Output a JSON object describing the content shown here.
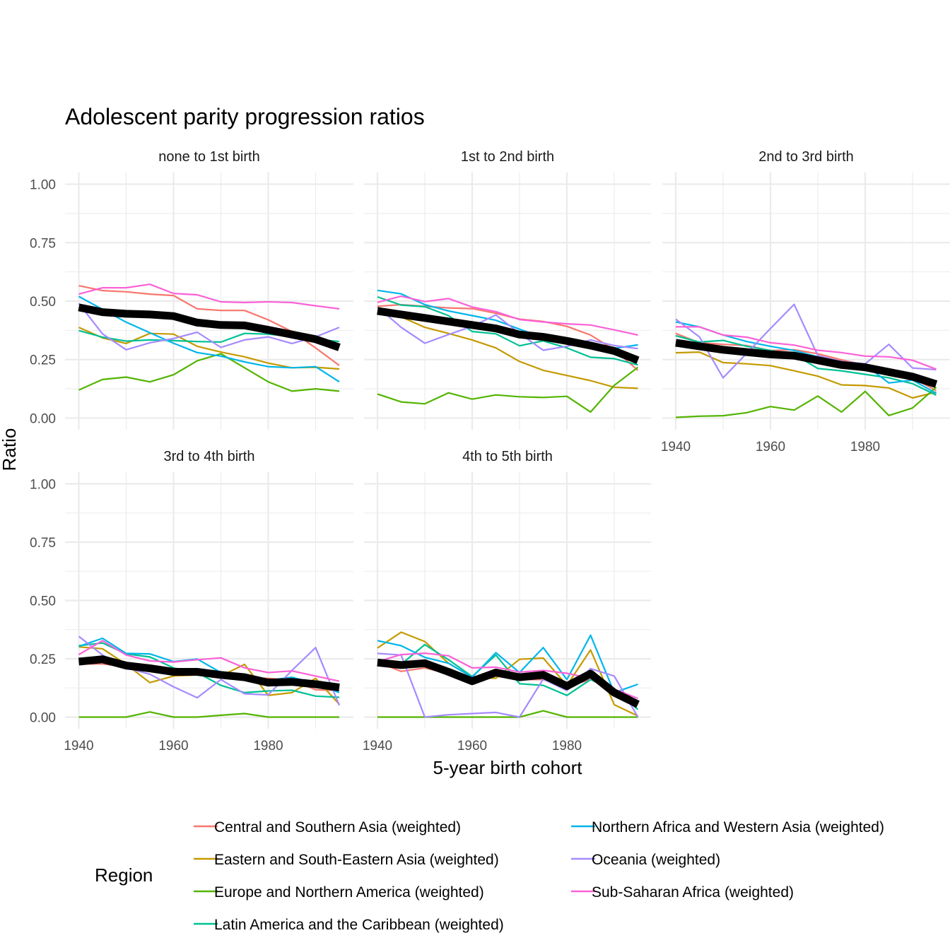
{
  "chart_data": {
    "type": "line",
    "title": "Adolescent parity progression ratios",
    "xlabel": "5-year birth cohort",
    "ylabel": "Ratio",
    "x": [
      1940,
      1945,
      1950,
      1955,
      1960,
      1965,
      1970,
      1975,
      1980,
      1985,
      1990,
      1995
    ],
    "xlim": [
      1937,
      1998
    ],
    "ylim": [
      -0.05,
      1.05
    ],
    "x_ticks": [
      1940,
      1960,
      1980
    ],
    "x_tick_labels": [
      "1940",
      "1960",
      "1980"
    ],
    "y_ticks": [
      0,
      0.25,
      0.5,
      0.75,
      1.0
    ],
    "y_tick_labels": [
      "0.00",
      "0.25",
      "0.50",
      "0.75",
      "1.00"
    ],
    "grid": true,
    "legend": {
      "title": "Region",
      "placement": "bottom",
      "entries": [
        {
          "name": "Central and Southern Asia (weighted)",
          "color": "#F8766D"
        },
        {
          "name": "Eastern and South-Eastern Asia (weighted)",
          "color": "#C49A00"
        },
        {
          "name": "Europe and Northern America (weighted)",
          "color": "#53B400"
        },
        {
          "name": "Latin America and the Caribbean (weighted)",
          "color": "#00C094"
        },
        {
          "name": "Northern Africa and Western Asia (weighted)",
          "color": "#00B6EB"
        },
        {
          "name": "Oceania (weighted)",
          "color": "#A58AFF"
        },
        {
          "name": "Sub-Saharan Africa (weighted)",
          "color": "#FB61D7"
        }
      ]
    },
    "overall_line_color": "#000000",
    "panels": [
      {
        "title": "none to 1st birth",
        "series": [
          {
            "name": "Central and Southern Asia (weighted)",
            "values": [
              0.566,
              0.545,
              0.54,
              0.53,
              0.524,
              0.467,
              0.46,
              0.46,
              0.42,
              0.37,
              0.3,
              0.225
            ]
          },
          {
            "name": "Eastern and South-Eastern Asia (weighted)",
            "values": [
              0.388,
              0.343,
              0.319,
              0.362,
              0.359,
              0.307,
              0.282,
              0.262,
              0.235,
              0.215,
              0.217,
              0.21
            ]
          },
          {
            "name": "Europe and Northern America (weighted)",
            "values": [
              0.12,
              0.165,
              0.175,
              0.155,
              0.185,
              0.245,
              0.275,
              0.215,
              0.155,
              0.115,
              0.125,
              0.115
            ]
          },
          {
            "name": "Latin America and the Caribbean (weighted)",
            "values": [
              0.374,
              0.346,
              0.329,
              0.334,
              0.331,
              0.327,
              0.325,
              0.362,
              0.359,
              0.349,
              0.337,
              0.327
            ]
          },
          {
            "name": "Northern Africa and Western Asia (weighted)",
            "values": [
              0.52,
              0.465,
              0.41,
              0.365,
              0.32,
              0.28,
              0.265,
              0.24,
              0.22,
              0.215,
              0.22,
              0.155
            ]
          },
          {
            "name": "Oceania (weighted)",
            "values": [
              0.49,
              0.36,
              0.292,
              0.322,
              0.34,
              0.367,
              0.302,
              0.334,
              0.347,
              0.319,
              0.347,
              0.388
            ]
          },
          {
            "name": "Sub-Saharan Africa (weighted)",
            "values": [
              0.53,
              0.557,
              0.557,
              0.572,
              0.533,
              0.527,
              0.497,
              0.494,
              0.497,
              0.494,
              0.48,
              0.467
            ]
          },
          {
            "name": "Overall",
            "values": [
              0.473,
              0.453,
              0.446,
              0.443,
              0.436,
              0.408,
              0.398,
              0.396,
              0.377,
              0.357,
              0.337,
              0.302
            ]
          }
        ]
      },
      {
        "title": "1st to 2nd birth",
        "series": [
          {
            "name": "Central and Southern Asia (weighted)",
            "values": [
              0.478,
              0.485,
              0.478,
              0.471,
              0.468,
              0.448,
              0.423,
              0.413,
              0.392,
              0.355,
              0.292,
              0.204
            ]
          },
          {
            "name": "Eastern and South-Eastern Asia (weighted)",
            "values": [
              0.475,
              0.433,
              0.388,
              0.362,
              0.334,
              0.3,
              0.242,
              0.204,
              0.182,
              0.16,
              0.132,
              0.127
            ]
          },
          {
            "name": "Europe and Northern America (weighted)",
            "values": [
              0.103,
              0.069,
              0.061,
              0.108,
              0.081,
              0.099,
              0.091,
              0.088,
              0.093,
              0.026,
              0.14,
              0.217
            ]
          },
          {
            "name": "Latin America and the Caribbean (weighted)",
            "values": [
              0.518,
              0.483,
              0.476,
              0.438,
              0.37,
              0.36,
              0.309,
              0.33,
              0.3,
              0.26,
              0.254,
              0.227
            ]
          },
          {
            "name": "Northern Africa and Western Asia (weighted)",
            "values": [
              0.546,
              0.531,
              0.485,
              0.458,
              0.438,
              0.418,
              0.38,
              0.343,
              0.322,
              0.302,
              0.298,
              0.313
            ]
          },
          {
            "name": "Oceania (weighted)",
            "values": [
              0.475,
              0.388,
              0.32,
              0.357,
              0.392,
              0.441,
              0.362,
              0.29,
              0.307,
              0.334,
              0.31,
              0.297
            ]
          },
          {
            "name": "Sub-Saharan Africa (weighted)",
            "values": [
              0.495,
              0.521,
              0.498,
              0.511,
              0.475,
              0.455,
              0.421,
              0.411,
              0.403,
              0.398,
              0.377,
              0.355
            ]
          },
          {
            "name": "Overall",
            "values": [
              0.458,
              0.443,
              0.428,
              0.413,
              0.398,
              0.383,
              0.357,
              0.347,
              0.33,
              0.31,
              0.287,
              0.247
            ]
          }
        ]
      },
      {
        "title": "2nd to 3rd birth",
        "series": [
          {
            "name": "Central and Southern Asia (weighted)",
            "values": [
              0.362,
              0.322,
              0.315,
              0.31,
              0.289,
              0.292,
              0.275,
              0.249,
              0.227,
              0.207,
              0.172,
              0.117
            ]
          },
          {
            "name": "Eastern and South-Eastern Asia (weighted)",
            "values": [
              0.279,
              0.282,
              0.237,
              0.232,
              0.224,
              0.202,
              0.179,
              0.142,
              0.139,
              0.129,
              0.086,
              0.111
            ]
          },
          {
            "name": "Europe and Northern America (weighted)",
            "values": [
              0.003,
              0.008,
              0.01,
              0.023,
              0.049,
              0.034,
              0.094,
              0.026,
              0.114,
              0.011,
              0.043,
              0.132
            ]
          },
          {
            "name": "Latin America and the Caribbean (weighted)",
            "values": [
              0.352,
              0.325,
              0.332,
              0.307,
              0.289,
              0.272,
              0.212,
              0.202,
              0.187,
              0.172,
              0.147,
              0.098
            ]
          },
          {
            "name": "Northern Africa and Western Asia (weighted)",
            "values": [
              0.411,
              0.39,
              0.355,
              0.327,
              0.307,
              0.289,
              0.262,
              0.24,
              0.227,
              0.15,
              0.162,
              0.106
            ]
          },
          {
            "name": "Oceania (weighted)",
            "values": [
              0.423,
              0.347,
              0.172,
              0.277,
              0.383,
              0.486,
              0.267,
              0.242,
              0.232,
              0.315,
              0.214,
              0.207
            ]
          },
          {
            "name": "Sub-Saharan Africa (weighted)",
            "values": [
              0.39,
              0.39,
              0.355,
              0.346,
              0.322,
              0.312,
              0.29,
              0.28,
              0.265,
              0.262,
              0.247,
              0.209
            ]
          },
          {
            "name": "Overall",
            "values": [
              0.322,
              0.307,
              0.292,
              0.282,
              0.272,
              0.267,
              0.247,
              0.227,
              0.217,
              0.197,
              0.177,
              0.145
            ]
          }
        ]
      },
      {
        "title": "3rd to 4th birth",
        "series": [
          {
            "name": "Central and Southern Asia (weighted)",
            "values": [
              0.228,
              0.228,
              0.216,
              0.221,
              0.196,
              0.191,
              0.181,
              0.168,
              0.166,
              0.158,
              0.117,
              0.114
            ]
          },
          {
            "name": "Eastern and South-Eastern Asia (weighted)",
            "values": [
              0.301,
              0.293,
              0.226,
              0.148,
              0.176,
              0.181,
              0.176,
              0.226,
              0.093,
              0.105,
              0.166,
              0.055
            ]
          },
          {
            "name": "Europe and Northern America (weighted)",
            "values": [
              0.0,
              0.0,
              0.0,
              0.022,
              0.0,
              0.0,
              0.008,
              0.015,
              0.0,
              0.0,
              0.0,
              0.0
            ]
          },
          {
            "name": "Latin America and the Caribbean (weighted)",
            "values": [
              0.306,
              0.318,
              0.271,
              0.258,
              0.211,
              0.191,
              0.136,
              0.105,
              0.112,
              0.115,
              0.09,
              0.085
            ]
          },
          {
            "name": "Northern Africa and Western Asia (weighted)",
            "values": [
              0.303,
              0.338,
              0.273,
              0.271,
              0.238,
              0.249,
              0.191,
              0.166,
              0.158,
              0.171,
              0.143,
              0.105
            ]
          },
          {
            "name": "Oceania (weighted)",
            "values": [
              0.346,
              0.266,
              0.211,
              0.184,
              0.13,
              0.083,
              0.161,
              0.1,
              0.095,
              0.2,
              0.298,
              0.05
            ]
          },
          {
            "name": "Sub-Saharan Africa (weighted)",
            "values": [
              0.268,
              0.328,
              0.266,
              0.241,
              0.236,
              0.246,
              0.254,
              0.211,
              0.191,
              0.198,
              0.176,
              0.154
            ]
          },
          {
            "name": "Overall",
            "values": [
              0.238,
              0.248,
              0.221,
              0.209,
              0.194,
              0.194,
              0.181,
              0.171,
              0.148,
              0.151,
              0.141,
              0.127
            ]
          }
        ]
      },
      {
        "title": "4th to 5th birth",
        "series": [
          {
            "name": "Central and Southern Asia (weighted)",
            "values": [
              0.236,
              0.196,
              0.211,
              0.186,
              0.158,
              0.176,
              0.161,
              0.161,
              0.13,
              0.161,
              0.111,
              0.06
            ]
          },
          {
            "name": "Eastern and South-Eastern Asia (weighted)",
            "values": [
              0.296,
              0.364,
              0.324,
              0.231,
              0.171,
              0.166,
              0.248,
              0.253,
              0.136,
              0.288,
              0.053,
              0.005
            ]
          },
          {
            "name": "Europe and Northern America (weighted)",
            "values": [
              0.0,
              0.0,
              0.0,
              0.0,
              0.0,
              0.0,
              0.0,
              0.027,
              0.0,
              0.0,
              0.0,
              0.0
            ]
          },
          {
            "name": "Latin America and the Caribbean (weighted)",
            "values": [
              0.246,
              0.226,
              0.311,
              0.246,
              0.174,
              0.266,
              0.143,
              0.136,
              0.093,
              0.161,
              0.115,
              0.033
            ]
          },
          {
            "name": "Northern Africa and Western Asia (weighted)",
            "values": [
              0.328,
              0.306,
              0.256,
              0.231,
              0.171,
              0.276,
              0.191,
              0.298,
              0.161,
              0.351,
              0.105,
              0.141
            ]
          },
          {
            "name": "Oceania (weighted)",
            "values": [
              0.273,
              0.266,
              0.0,
              0.01,
              0.015,
              0.02,
              0.0,
              0.163,
              0.114,
              0.208,
              0.176,
              0.0
            ]
          },
          {
            "name": "Sub-Saharan Africa (weighted)",
            "values": [
              0.238,
              0.268,
              0.274,
              0.263,
              0.211,
              0.214,
              0.193,
              0.2,
              0.188,
              0.166,
              0.12,
              0.08
            ]
          },
          {
            "name": "Overall",
            "values": [
              0.234,
              0.223,
              0.231,
              0.194,
              0.154,
              0.191,
              0.171,
              0.181,
              0.133,
              0.186,
              0.105,
              0.055
            ]
          }
        ]
      }
    ]
  }
}
